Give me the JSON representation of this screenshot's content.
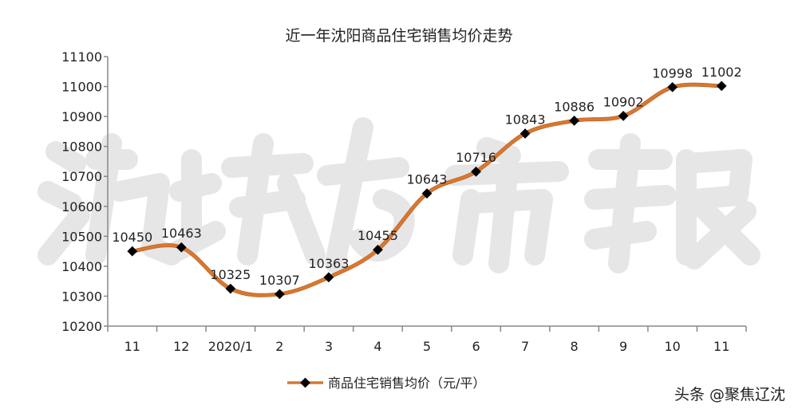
{
  "chart_data": {
    "type": "line",
    "title": "近一年沈阳商品住宅销售均价走势",
    "categories": [
      "11",
      "12",
      "2020/1",
      "2",
      "3",
      "4",
      "5",
      "6",
      "7",
      "8",
      "9",
      "10",
      "11"
    ],
    "series": [
      {
        "name": "商品住宅销售均价（元/平）",
        "values": [
          10450,
          10463,
          10325,
          10307,
          10363,
          10455,
          10643,
          10716,
          10843,
          10886,
          10902,
          10998,
          11002
        ]
      }
    ],
    "ylim": [
      10200,
      11100
    ],
    "yticks": [
      10200,
      10300,
      10400,
      10500,
      10600,
      10700,
      10800,
      10900,
      11000,
      11100
    ],
    "grid": false,
    "legend": "bottom",
    "smooth": true,
    "colors": {
      "line": "#d9782f",
      "marker": "#000000",
      "axis": "#888888"
    }
  },
  "watermark": {
    "logo_text": "沈城楼市报",
    "credit": "头条 @聚焦辽沈"
  }
}
